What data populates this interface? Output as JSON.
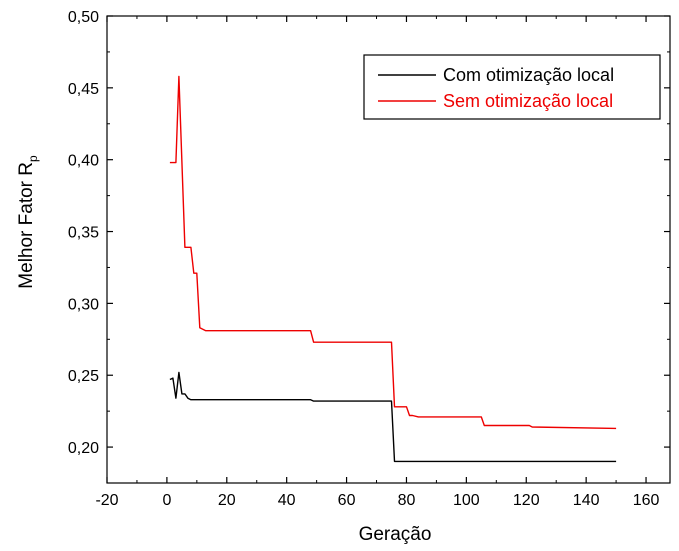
{
  "chart_data": {
    "type": "line",
    "title": "",
    "xlabel": "Geração",
    "ylabel_main": "Melhor Fator R",
    "ylabel_sub": "p",
    "xlim": [
      -20,
      168
    ],
    "ylim": [
      0.175,
      0.5
    ],
    "x_ticks": [
      -20,
      0,
      20,
      40,
      60,
      80,
      100,
      120,
      140,
      160
    ],
    "x_tick_labels": [
      "-20",
      "0",
      "20",
      "40",
      "60",
      "80",
      "100",
      "120",
      "140",
      "160"
    ],
    "y_ticks": [
      0.2,
      0.25,
      0.3,
      0.35,
      0.4,
      0.45,
      0.5
    ],
    "y_tick_labels": [
      "0,20",
      "0,25",
      "0,30",
      "0,35",
      "0,40",
      "0,45",
      "0,50"
    ],
    "grid": false,
    "legend_position": "top-right",
    "series": [
      {
        "name": "Com otimização local",
        "color": "#000000",
        "x": [
          1,
          2,
          3,
          4,
          5,
          6,
          7,
          8,
          10,
          48,
          49,
          75,
          76,
          150
        ],
        "y": [
          0.247,
          0.248,
          0.234,
          0.252,
          0.237,
          0.237,
          0.234,
          0.233,
          0.233,
          0.233,
          0.232,
          0.232,
          0.19,
          0.19
        ]
      },
      {
        "name": "Sem otimização local",
        "color": "#ee0000",
        "x": [
          1,
          3,
          4,
          6,
          8,
          9,
          10,
          11,
          13,
          48,
          49,
          75,
          76,
          80,
          81,
          82,
          84,
          105,
          106,
          121,
          122,
          150
        ],
        "y": [
          0.398,
          0.398,
          0.458,
          0.339,
          0.339,
          0.321,
          0.321,
          0.283,
          0.281,
          0.281,
          0.273,
          0.273,
          0.228,
          0.228,
          0.222,
          0.222,
          0.221,
          0.221,
          0.215,
          0.215,
          0.214,
          0.213
        ]
      }
    ]
  }
}
